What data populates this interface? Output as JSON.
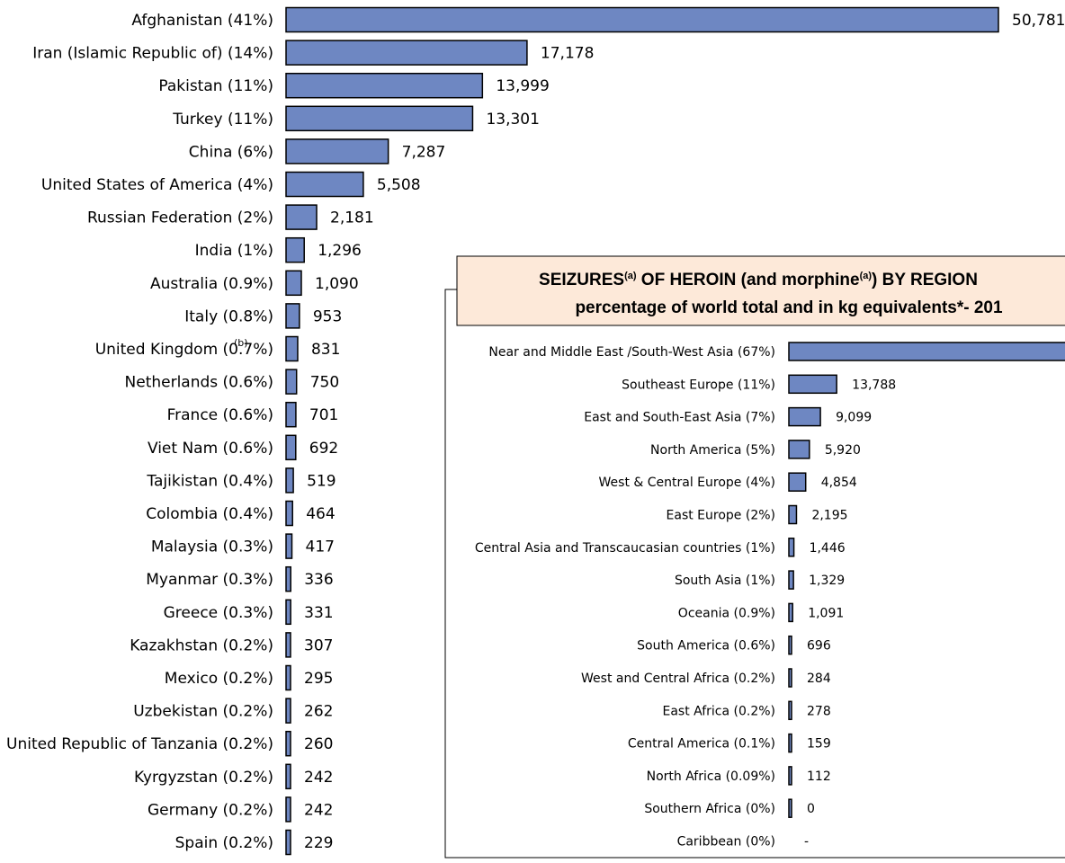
{
  "chart_data": [
    {
      "type": "bar",
      "orientation": "horizontal",
      "categories": [
        "Afghanistan (41%)",
        "Iran (Islamic Republic of) (14%)",
        "Pakistan (11%)",
        "Turkey (11%)",
        "China (6%)",
        "United States of America (4%)",
        "Russian Federation (2%)",
        "India (1%)",
        "Australia (0.9%)",
        "Italy (0.8%)",
        "United Kingdom (0.7%)",
        "Netherlands (0.6%)",
        "France (0.6%)",
        "Viet Nam (0.6%)",
        "Tajikistan (0.4%)",
        "Colombia (0.4%)",
        "Malaysia (0.3%)",
        "Myanmar (0.3%)",
        "Greece (0.3%)",
        "Kazakhstan (0.2%)",
        "Mexico (0.2%)",
        "Uzbekistan (0.2%)",
        "United Republic of Tanzania (0.2%)",
        "Kyrgyzstan (0.2%)",
        "Germany (0.2%)",
        "Spain (0.2%)"
      ],
      "values": [
        50781,
        17178,
        13999,
        13301,
        7287,
        5508,
        2181,
        1296,
        1090,
        953,
        831,
        750,
        701,
        692,
        519,
        464,
        417,
        336,
        331,
        307,
        295,
        262,
        260,
        242,
        242,
        229
      ],
      "value_labels": [
        "50,781",
        "17,178",
        "13,999",
        "13,301",
        "7,287",
        "5,508",
        "2,181",
        "1,296",
        "1,090",
        "953",
        "831",
        "750",
        "701",
        "692",
        "519",
        "464",
        "417",
        "336",
        "331",
        "307",
        "295",
        "262",
        "260",
        "242",
        "242",
        "229"
      ],
      "footnote_marker": "(b)",
      "bar_color": "#6e87c2"
    },
    {
      "type": "bar",
      "orientation": "horizontal",
      "title_line1": "SEIZURES",
      "title_sup1": "(a)",
      "title_mid": " OF HEROIN (and morphine",
      "title_sup2": "(a)",
      "title_end": ")  BY REGION",
      "title_line2": "percentage of world total and in kg equivalents*- 201",
      "title_bg": "#fde9d9",
      "categories": [
        "Near and Middle East /South-West Asia (67%)",
        "Southeast Europe (11%)",
        "East and South-East Asia (7%)",
        "North America (5%)",
        "West & Central Europe (4%)",
        "East Europe (2%)",
        "Central Asia and Transcaucasian countries (1%)",
        "South Asia (1%)",
        "Oceania (0.9%)",
        "South America (0.6%)",
        "West and Central Africa (0.2%)",
        "East Africa (0.2%)",
        "Central America (0.1%)",
        "North Africa (0.09%)",
        "Southern Africa (0%)",
        "Caribbean (0%)"
      ],
      "values": [
        83000,
        13788,
        9099,
        5920,
        4854,
        2195,
        1446,
        1329,
        1091,
        696,
        284,
        278,
        159,
        112,
        0,
        0
      ],
      "value_labels": [
        "",
        "13,788",
        "9,099",
        "5,920",
        "4,854",
        "2,195",
        "1,446",
        "1,329",
        "1,091",
        "696",
        "284",
        "278",
        "159",
        "112",
        "0",
        "-"
      ],
      "bar_color": "#6e87c2"
    }
  ]
}
